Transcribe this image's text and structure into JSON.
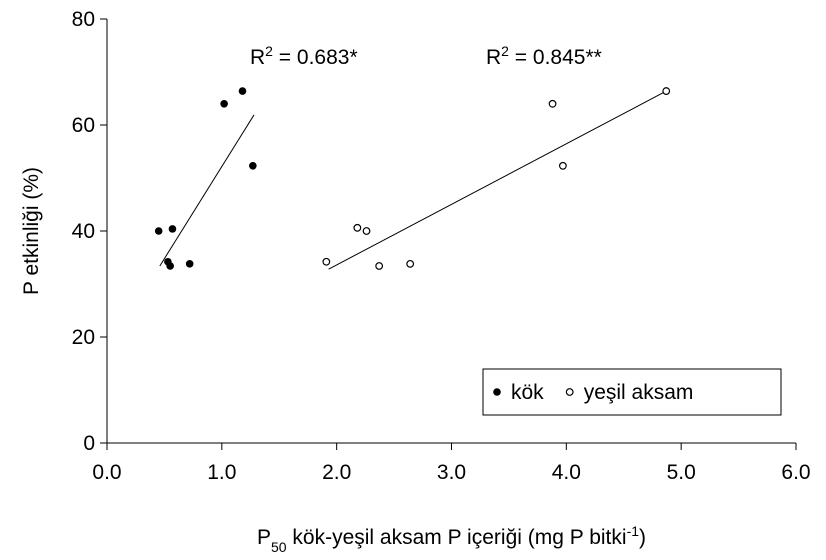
{
  "chart_data": {
    "type": "scatter",
    "x_label": [
      {
        "text": "P"
      },
      {
        "text": "50",
        "shift": "sub"
      },
      {
        "text": " kök-yeşil aksam P içeriği (mg P bitki"
      },
      {
        "text": "-1",
        "shift": "super"
      },
      {
        "text": ")"
      }
    ],
    "y_label": "P etkinliği (%)",
    "xlim": [
      0,
      6
    ],
    "ylim": [
      0,
      80
    ],
    "xticks": [
      {
        "value": 0,
        "label": "0.0"
      },
      {
        "value": 1,
        "label": "1.0"
      },
      {
        "value": 2,
        "label": "2.0"
      },
      {
        "value": 3,
        "label": "3.0"
      },
      {
        "value": 4,
        "label": "4.0"
      },
      {
        "value": 5,
        "label": "5.0"
      },
      {
        "value": 6,
        "label": "6.0"
      }
    ],
    "yticks": [
      0,
      20,
      40,
      60,
      80
    ],
    "legend": "lower right",
    "series": [
      {
        "name": "kök",
        "color": "#000000",
        "marker": "filled",
        "x": [
          0.45,
          0.53,
          0.55,
          0.57,
          0.72,
          1.02,
          1.18,
          1.27
        ],
        "values": [
          40.0,
          34.2,
          33.4,
          40.4,
          33.8,
          64.0,
          66.4,
          52.3
        ],
        "trend": {
          "x": [
            0.46,
            1.28
          ],
          "values": [
            33.4,
            61.9
          ]
        },
        "annotation": [
          {
            "text": "R"
          },
          {
            "text": "2",
            "shift": "super"
          },
          {
            "text": " = 0.683*"
          }
        ]
      },
      {
        "name": "yeşil aksam",
        "color": "#000000",
        "marker": "open",
        "x": [
          1.91,
          2.18,
          2.26,
          2.37,
          2.64,
          3.88,
          3.97,
          4.87
        ],
        "values": [
          34.2,
          40.6,
          40.0,
          33.4,
          33.8,
          64.0,
          52.3,
          66.4
        ],
        "trend": {
          "x": [
            1.93,
            4.87
          ],
          "values": [
            32.8,
            66.4
          ]
        },
        "annotation": [
          {
            "text": "R"
          },
          {
            "text": "2",
            "shift": "super"
          },
          {
            "text": " = 0.845**"
          }
        ]
      }
    ]
  }
}
